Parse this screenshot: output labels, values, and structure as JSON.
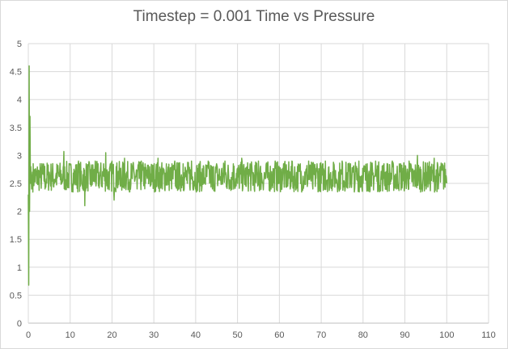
{
  "chart_data": {
    "type": "line",
    "title": "Timestep = 0.001 Time vs Pressure",
    "xlabel": "",
    "ylabel": "",
    "xlim": [
      0,
      110
    ],
    "ylim": [
      0,
      5
    ],
    "x_ticks": [
      0,
      10,
      20,
      30,
      40,
      50,
      60,
      70,
      80,
      90,
      100,
      110
    ],
    "y_ticks": [
      0,
      0.5,
      1,
      1.5,
      2,
      2.5,
      3,
      3.5,
      4,
      4.5,
      5
    ],
    "x_tick_labels": [
      "0",
      "10",
      "20",
      "30",
      "40",
      "50",
      "60",
      "70",
      "80",
      "90",
      "100",
      "110"
    ],
    "y_tick_labels": [
      "0",
      "0.5",
      "1",
      "1.5",
      "2",
      "2.5",
      "3",
      "3.5",
      "4",
      "4.5",
      "5"
    ],
    "grid": true,
    "legend": "none",
    "series": [
      {
        "color": "#70ad47",
        "x": [
          0,
          0.1,
          0.2,
          0.3,
          0.4,
          0.5,
          0.6,
          0.8,
          1,
          2,
          3,
          4,
          5,
          6,
          7,
          8,
          8.5,
          9,
          10,
          11,
          12,
          13,
          13.5,
          14,
          15,
          16,
          17,
          18,
          18.5,
          19,
          20,
          20.5,
          21,
          22,
          23,
          24,
          25,
          26,
          27,
          28,
          29,
          30,
          31,
          32,
          33,
          34,
          35,
          36,
          37,
          38,
          39,
          40,
          41,
          42,
          43,
          44,
          45,
          46,
          47,
          48,
          49,
          50,
          51,
          52,
          53,
          54,
          55,
          56,
          57,
          58,
          59,
          60,
          61,
          62,
          63,
          64,
          65,
          66,
          67,
          68,
          69,
          70,
          71,
          72,
          73,
          74,
          75,
          76,
          77,
          78,
          79,
          80,
          81,
          82,
          83,
          84,
          85,
          86,
          87,
          88,
          89,
          90,
          91,
          92,
          93,
          94,
          95,
          96,
          97,
          98,
          99,
          100
        ],
        "y": [
          2.3,
          0.68,
          4.6,
          2.0,
          3.7,
          2.5,
          2.8,
          2.4,
          2.7,
          2.5,
          2.75,
          2.4,
          2.7,
          2.45,
          2.8,
          2.5,
          3.07,
          2.4,
          2.85,
          2.5,
          2.9,
          2.4,
          2.1,
          2.8,
          2.45,
          2.9,
          2.5,
          2.85,
          3.05,
          2.4,
          2.9,
          2.2,
          2.8,
          2.45,
          2.95,
          2.5,
          2.85,
          2.4,
          2.9,
          2.5,
          2.8,
          2.45,
          2.95,
          2.4,
          2.85,
          2.55,
          2.9,
          2.4,
          2.85,
          2.5,
          2.9,
          2.4,
          2.85,
          2.5,
          2.9,
          2.4,
          2.85,
          2.55,
          2.9,
          2.4,
          2.85,
          2.5,
          2.95,
          2.45,
          2.85,
          2.4,
          2.9,
          2.5,
          2.85,
          2.4,
          2.9,
          2.5,
          2.85,
          2.45,
          2.9,
          2.4,
          2.85,
          2.5,
          2.9,
          2.4,
          2.85,
          2.5,
          2.9,
          2.45,
          2.85,
          2.4,
          2.9,
          2.5,
          2.85,
          2.4,
          2.9,
          2.5,
          2.85,
          2.45,
          2.9,
          2.4,
          2.85,
          2.5,
          2.9,
          2.4,
          2.85,
          2.5,
          2.9,
          2.45,
          3.0,
          2.4,
          2.85,
          2.5,
          2.95,
          2.4,
          2.85,
          2.5
        ]
      }
    ]
  }
}
